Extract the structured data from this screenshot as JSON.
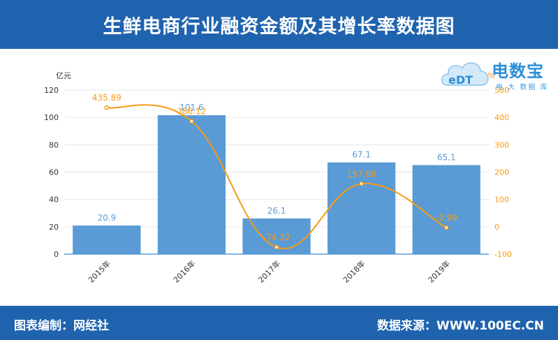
{
  "header": {
    "title": "生鲜电商行业融资金额及其增长率数据图"
  },
  "footer": {
    "credit": "图表编制：网经社",
    "source": "数据来源：WWW.100EC.CN"
  },
  "logo": {
    "name": "电数宝",
    "tagline": "电 大 数据 库",
    "mark_text": "eDT"
  },
  "colors": {
    "header": "#1f63ae",
    "bar": "#5b9bd5",
    "line": "#f59b14",
    "line_label": "#f59b14",
    "bar_label": "#5b9bd5"
  },
  "chart_data": {
    "type": "bar",
    "categories": [
      "2015年",
      "2016年",
      "2017年",
      "2018年",
      "2019年"
    ],
    "series": [
      {
        "type": "bar",
        "axis": "left",
        "values": [
          20.9,
          101.6,
          26.1,
          67.1,
          65.1
        ],
        "labels": [
          "20.9",
          "101.6",
          "26.1",
          "67.1",
          "65.1"
        ]
      },
      {
        "type": "line",
        "axis": "right",
        "values": [
          435.89,
          386.12,
          -74.32,
          157.08,
          -2.99
        ],
        "labels": [
          "435.89",
          "386.12",
          "-74.32",
          "157.08",
          "-2.99"
        ],
        "smooth": true
      }
    ],
    "y_left": {
      "unit": "亿元",
      "range": [
        0,
        120
      ],
      "ticks": [
        "0",
        "20",
        "40",
        "60",
        "80",
        "100",
        "120"
      ]
    },
    "y_right": {
      "unit": "%",
      "range": [
        -100,
        500
      ],
      "ticks": [
        "-100",
        "0",
        "100",
        "200",
        "300",
        "400",
        "500"
      ]
    },
    "grid": true
  }
}
